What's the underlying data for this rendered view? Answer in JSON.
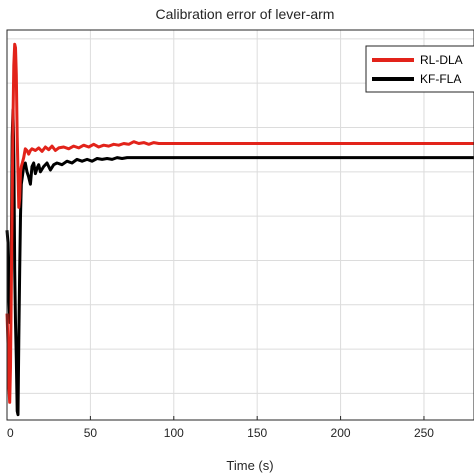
{
  "chart_data": {
    "type": "line",
    "title": "Calibration error of lever-arm",
    "xlabel": "Time (s)",
    "ylabel": "",
    "xlim": [
      0,
      280
    ],
    "ylim": [
      -1.15,
      1.05
    ],
    "x_ticks": [
      0,
      50,
      100,
      150,
      200,
      250
    ],
    "x_tick_labels": [
      "0",
      "50",
      "100",
      "150",
      "200",
      "250"
    ],
    "y_ticks": [
      -1.0,
      -0.75,
      -0.5,
      -0.25,
      0,
      0.25,
      0.5,
      0.75,
      1.0
    ],
    "grid": true,
    "legend_position": "top-right",
    "series": [
      {
        "name": "RL-DLA",
        "color": "#e2231a",
        "x": [
          0,
          0.6,
          1.1,
          1.6,
          2.1,
          2.6,
          3.1,
          3.6,
          4.1,
          4.6,
          5.1,
          5.6,
          6.1,
          6.6,
          7.1,
          7.6,
          8.1,
          8.6,
          9.2,
          10,
          11,
          12,
          13,
          14,
          15,
          17,
          19,
          21,
          23,
          25,
          27,
          29,
          31,
          34,
          37,
          40,
          43,
          46,
          49,
          52,
          55,
          58,
          61,
          64,
          67,
          70,
          73,
          76,
          79,
          82,
          85,
          88,
          91,
          95,
          100,
          120,
          150,
          200,
          250,
          280
        ],
        "y": [
          -0.55,
          -0.72,
          -0.95,
          -1.05,
          -0.85,
          -0.4,
          0.1,
          0.55,
          0.85,
          0.97,
          0.95,
          0.8,
          0.45,
          0.25,
          0.05,
          0.1,
          0.25,
          0.28,
          0.3,
          0.33,
          0.38,
          0.37,
          0.35,
          0.37,
          0.38,
          0.37,
          0.385,
          0.365,
          0.39,
          0.375,
          0.395,
          0.37,
          0.385,
          0.39,
          0.38,
          0.395,
          0.385,
          0.4,
          0.39,
          0.405,
          0.39,
          0.4,
          0.395,
          0.405,
          0.4,
          0.41,
          0.405,
          0.42,
          0.41,
          0.415,
          0.405,
          0.415,
          0.41,
          0.41,
          0.41,
          0.41,
          0.41,
          0.41,
          0.41,
          0.41
        ]
      },
      {
        "name": "KF-FLA",
        "color": "#000000",
        "x": [
          0,
          0.6,
          1.1,
          1.6,
          2.1,
          2.6,
          3.1,
          3.6,
          4.1,
          4.6,
          5.1,
          5.6,
          6.1,
          6.6,
          7.1,
          7.6,
          8.1,
          8.6,
          9.2,
          10,
          11,
          12,
          13,
          14,
          15,
          16,
          17,
          18,
          19,
          20,
          22,
          24,
          26,
          28,
          30,
          33,
          36,
          39,
          42,
          45,
          48,
          51,
          54,
          57,
          60,
          63,
          66,
          69,
          72,
          75,
          78,
          82,
          86,
          90,
          95,
          100,
          120,
          150,
          200,
          250,
          280
        ],
        "y": [
          -0.08,
          -0.15,
          -0.45,
          -0.6,
          -0.55,
          -0.2,
          0.45,
          0.6,
          0.35,
          -0.3,
          -0.6,
          -0.8,
          -1.1,
          -1.12,
          -0.7,
          -0.3,
          0.0,
          0.18,
          0.22,
          0.28,
          0.3,
          0.25,
          0.22,
          0.18,
          0.28,
          0.3,
          0.24,
          0.27,
          0.29,
          0.25,
          0.28,
          0.3,
          0.26,
          0.29,
          0.3,
          0.29,
          0.31,
          0.3,
          0.32,
          0.31,
          0.32,
          0.31,
          0.325,
          0.32,
          0.325,
          0.32,
          0.33,
          0.325,
          0.33,
          0.33,
          0.33,
          0.33,
          0.33,
          0.33,
          0.33,
          0.33,
          0.33,
          0.33,
          0.33,
          0.33,
          0.33
        ]
      }
    ]
  }
}
